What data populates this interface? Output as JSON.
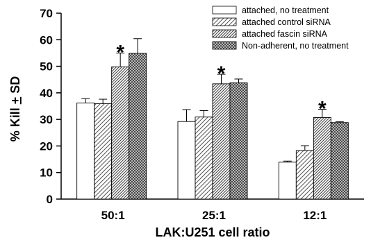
{
  "chart_data": {
    "type": "bar",
    "categories": [
      "50:1",
      "25:1",
      "12:1"
    ],
    "series": [
      {
        "name": "attached, no treatment",
        "pattern": "solid-white",
        "values": [
          36.2,
          29.2,
          13.9
        ],
        "errors": [
          1.6,
          4.5,
          0.4
        ]
      },
      {
        "name": "attached control siRNA",
        "pattern": "hatch-sparse",
        "values": [
          35.9,
          30.9,
          18.3
        ],
        "errors": [
          1.7,
          2.4,
          1.8
        ]
      },
      {
        "name": "attached fascin siRNA",
        "pattern": "hatch-dense",
        "values": [
          49.8,
          43.4,
          30.7
        ],
        "errors": [
          5.2,
          3.6,
          3.1
        ]
      },
      {
        "name": "Non-adherent, no treatment",
        "pattern": "crosshatch",
        "values": [
          54.9,
          43.8,
          28.8
        ],
        "errors": [
          5.5,
          1.4,
          0.3
        ]
      }
    ],
    "significance": {
      "marker": "*",
      "series_index": 2
    },
    "xlabel": "LAK:U251 cell ratio",
    "ylabel": "% Kill + SD",
    "ylim": [
      0,
      70
    ],
    "yticks": [
      0,
      10,
      20,
      30,
      40,
      50,
      60,
      70
    ],
    "grid": false,
    "legend_position": "top-right"
  }
}
